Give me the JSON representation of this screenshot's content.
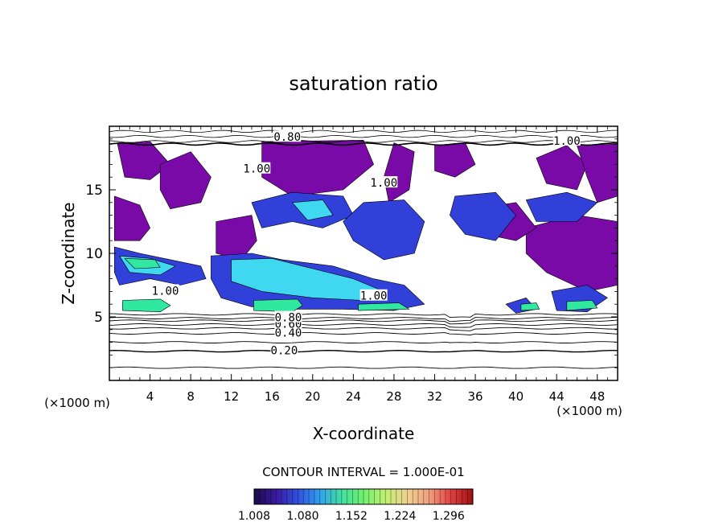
{
  "chart_data": {
    "type": "heatmap",
    "title": "saturation ratio",
    "xlabel": "X-coordinate",
    "ylabel": "Z-coordinate",
    "x_unit_label": "(×1000 m)",
    "z_unit_label": "(×1000 m)",
    "xlim": [
      0,
      50
    ],
    "ylim": [
      0,
      20
    ],
    "x_ticks": [
      4,
      8,
      12,
      16,
      20,
      24,
      28,
      32,
      36,
      40,
      44,
      48
    ],
    "x_tick_labels": [
      "4",
      "8",
      "12",
      "16",
      "20",
      "24",
      "28",
      "32",
      "36",
      "40",
      "44",
      "48"
    ],
    "y_ticks": [
      5,
      10,
      15
    ],
    "y_tick_labels": [
      "5",
      "10",
      "15"
    ],
    "contour_interval_text": "CONTOUR INTERVAL = 1.000E-01",
    "contour_labels": [
      {
        "text": "0.20",
        "x": 17.2,
        "z": 2.3
      },
      {
        "text": "0.40",
        "x": 17.6,
        "z": 3.7
      },
      {
        "text": "0.60",
        "x": 17.6,
        "z": 4.4
      },
      {
        "text": "0.80",
        "x": 17.6,
        "z": 4.9
      },
      {
        "text": "1.00",
        "x": 5.5,
        "z": 7.0
      },
      {
        "text": "1.00",
        "x": 26.0,
        "z": 6.6
      },
      {
        "text": "1.00",
        "x": 14.5,
        "z": 16.6
      },
      {
        "text": "1.00",
        "x": 27.0,
        "z": 15.5
      },
      {
        "text": "0.80",
        "x": 17.5,
        "z": 19.1
      },
      {
        "text": "1.00",
        "x": 45.0,
        "z": 18.8
      }
    ],
    "contour_levels_below_cloud": [
      0.1,
      0.2,
      0.3,
      0.4,
      0.5,
      0.6,
      0.7,
      0.8,
      0.9
    ],
    "color_scale": {
      "min": 1.008,
      "max": 1.332,
      "tick_labels": [
        "1.008",
        "1.080",
        "1.152",
        "1.224",
        "1.296"
      ],
      "colors": [
        "#1a0a4a",
        "#3a1aa0",
        "#3050e0",
        "#30a0f0",
        "#40e0a0",
        "#70f070",
        "#c0f070",
        "#f0d090",
        "#f0a080",
        "#e04040",
        "#a01010"
      ]
    },
    "fill_colors": {
      "supersat_low": "#7a0aa8",
      "blue": "#3040d8",
      "cyan": "#40d8f0",
      "green": "#30e8a0"
    },
    "regions": [
      {
        "level": "supersat_low",
        "points": [
          [
            0.5,
            14.5
          ],
          [
            3.0,
            13.8
          ],
          [
            4.0,
            12.0
          ],
          [
            3.0,
            11.0
          ],
          [
            0.5,
            11.0
          ]
        ]
      },
      {
        "level": "supersat_low",
        "points": [
          [
            0.8,
            18.6
          ],
          [
            4.0,
            18.8
          ],
          [
            6.0,
            17.0
          ],
          [
            4.0,
            15.8
          ],
          [
            1.5,
            16.0
          ]
        ]
      },
      {
        "level": "supersat_low",
        "points": [
          [
            5.0,
            17.0
          ],
          [
            8.0,
            18.0
          ],
          [
            10.0,
            16.0
          ],
          [
            9.0,
            14.0
          ],
          [
            6.0,
            13.5
          ],
          [
            5.0,
            15.0
          ]
        ]
      },
      {
        "level": "supersat_low",
        "points": [
          [
            10.5,
            12.5
          ],
          [
            14.0,
            13.0
          ],
          [
            14.5,
            11.0
          ],
          [
            13.0,
            9.5
          ],
          [
            10.5,
            10.0
          ]
        ]
      },
      {
        "level": "supersat_low",
        "points": [
          [
            15.0,
            18.8
          ],
          [
            25.0,
            18.9
          ],
          [
            26.0,
            17.0
          ],
          [
            23.0,
            15.0
          ],
          [
            18.0,
            14.5
          ],
          [
            15.0,
            16.0
          ]
        ]
      },
      {
        "level": "supersat_low",
        "points": [
          [
            28.0,
            18.7
          ],
          [
            30.0,
            18.0
          ],
          [
            29.5,
            15.0
          ],
          [
            27.5,
            14.0
          ],
          [
            27.0,
            16.0
          ]
        ]
      },
      {
        "level": "supersat_low",
        "points": [
          [
            32.0,
            18.5
          ],
          [
            35.0,
            18.7
          ],
          [
            36.0,
            17.0
          ],
          [
            34.0,
            16.0
          ],
          [
            32.0,
            16.5
          ]
        ]
      },
      {
        "level": "supersat_low",
        "points": [
          [
            42.0,
            17.5
          ],
          [
            45.0,
            18.5
          ],
          [
            47.0,
            17.0
          ],
          [
            46.0,
            15.0
          ],
          [
            43.0,
            15.5
          ]
        ]
      },
      {
        "level": "supersat_low",
        "points": [
          [
            46.0,
            18.5
          ],
          [
            50.0,
            18.6
          ],
          [
            50.0,
            14.5
          ],
          [
            48.0,
            14.0
          ],
          [
            47.0,
            16.0
          ]
        ]
      },
      {
        "level": "supersat_low",
        "points": [
          [
            41.0,
            12.0
          ],
          [
            46.0,
            13.0
          ],
          [
            50.0,
            12.5
          ],
          [
            50.0,
            7.5
          ],
          [
            47.0,
            7.0
          ],
          [
            43.0,
            8.5
          ],
          [
            41.0,
            10.0
          ]
        ]
      },
      {
        "level": "supersat_low",
        "points": [
          [
            36.0,
            13.5
          ],
          [
            40.0,
            14.0
          ],
          [
            42.0,
            12.0
          ],
          [
            40.0,
            11.0
          ],
          [
            37.0,
            11.5
          ]
        ]
      },
      {
        "level": "blue",
        "points": [
          [
            0.5,
            10.5
          ],
          [
            3.0,
            10.0
          ],
          [
            6.0,
            9.5
          ],
          [
            9.0,
            9.0
          ],
          [
            9.5,
            8.0
          ],
          [
            7.0,
            7.5
          ],
          [
            4.0,
            8.0
          ],
          [
            1.0,
            7.5
          ],
          [
            0.5,
            8.5
          ]
        ]
      },
      {
        "level": "blue",
        "points": [
          [
            10.0,
            9.8
          ],
          [
            14.0,
            10.0
          ],
          [
            17.0,
            9.5
          ],
          [
            22.0,
            9.0
          ],
          [
            26.0,
            8.0
          ],
          [
            29.0,
            7.5
          ],
          [
            31.0,
            6.0
          ],
          [
            28.0,
            5.5
          ],
          [
            23.0,
            5.6
          ],
          [
            18.0,
            5.6
          ],
          [
            14.0,
            5.8
          ],
          [
            11.0,
            6.5
          ],
          [
            10.0,
            8.0
          ]
        ]
      },
      {
        "level": "blue",
        "points": [
          [
            14.0,
            14.0
          ],
          [
            18.0,
            14.8
          ],
          [
            23.0,
            14.5
          ],
          [
            24.0,
            13.0
          ],
          [
            21.0,
            12.0
          ],
          [
            18.0,
            12.5
          ],
          [
            15.0,
            12.0
          ]
        ]
      },
      {
        "level": "blue",
        "points": [
          [
            25.0,
            14.0
          ],
          [
            29.0,
            14.2
          ],
          [
            31.0,
            12.5
          ],
          [
            30.0,
            10.0
          ],
          [
            27.0,
            9.5
          ],
          [
            24.0,
            11.0
          ],
          [
            23.0,
            12.5
          ]
        ]
      },
      {
        "level": "blue",
        "points": [
          [
            34.0,
            14.5
          ],
          [
            38.0,
            14.8
          ],
          [
            40.0,
            13.0
          ],
          [
            38.0,
            11.0
          ],
          [
            35.0,
            11.5
          ],
          [
            33.5,
            13.0
          ]
        ]
      },
      {
        "level": "blue",
        "points": [
          [
            41.0,
            14.2
          ],
          [
            45.0,
            14.8
          ],
          [
            48.0,
            14.0
          ],
          [
            46.0,
            12.5
          ],
          [
            42.0,
            12.5
          ]
        ]
      },
      {
        "level": "blue",
        "points": [
          [
            39.0,
            6.0
          ],
          [
            41.0,
            6.5
          ],
          [
            42.0,
            5.6
          ],
          [
            40.0,
            5.3
          ]
        ]
      },
      {
        "level": "blue",
        "points": [
          [
            43.5,
            7.0
          ],
          [
            47.0,
            7.5
          ],
          [
            49.0,
            6.5
          ],
          [
            47.0,
            5.4
          ],
          [
            44.0,
            5.5
          ]
        ]
      },
      {
        "level": "cyan",
        "points": [
          [
            1.0,
            9.8
          ],
          [
            4.0,
            9.6
          ],
          [
            6.5,
            9.0
          ],
          [
            5.0,
            8.3
          ],
          [
            2.0,
            8.5
          ]
        ]
      },
      {
        "level": "cyan",
        "points": [
          [
            12.0,
            9.5
          ],
          [
            16.0,
            9.6
          ],
          [
            20.0,
            8.8
          ],
          [
            24.0,
            8.0
          ],
          [
            27.0,
            7.0
          ],
          [
            25.0,
            6.3
          ],
          [
            20.0,
            6.5
          ],
          [
            15.0,
            7.0
          ],
          [
            12.0,
            7.8
          ]
        ]
      },
      {
        "level": "cyan",
        "points": [
          [
            18.0,
            14.0
          ],
          [
            21.0,
            14.2
          ],
          [
            22.0,
            13.0
          ],
          [
            19.5,
            12.6
          ]
        ]
      },
      {
        "level": "green",
        "points": [
          [
            1.3,
            6.3
          ],
          [
            5.0,
            6.4
          ],
          [
            6.0,
            5.9
          ],
          [
            5.0,
            5.4
          ],
          [
            1.3,
            5.5
          ]
        ]
      },
      {
        "level": "green",
        "points": [
          [
            1.5,
            9.6
          ],
          [
            4.5,
            9.5
          ],
          [
            5.0,
            8.9
          ],
          [
            2.5,
            8.8
          ]
        ]
      },
      {
        "level": "green",
        "points": [
          [
            14.2,
            6.3
          ],
          [
            18.5,
            6.4
          ],
          [
            19.0,
            5.9
          ],
          [
            18.0,
            5.4
          ],
          [
            14.2,
            5.5
          ]
        ]
      },
      {
        "level": "green",
        "points": [
          [
            24.5,
            6.0
          ],
          [
            28.5,
            6.1
          ],
          [
            29.5,
            5.6
          ],
          [
            24.5,
            5.5
          ]
        ]
      },
      {
        "level": "green",
        "points": [
          [
            40.5,
            6.0
          ],
          [
            42.0,
            6.1
          ],
          [
            42.3,
            5.6
          ],
          [
            40.5,
            5.5
          ]
        ]
      },
      {
        "level": "green",
        "points": [
          [
            45.0,
            6.2
          ],
          [
            47.5,
            6.3
          ],
          [
            48.0,
            5.7
          ],
          [
            45.0,
            5.5
          ]
        ]
      }
    ]
  }
}
